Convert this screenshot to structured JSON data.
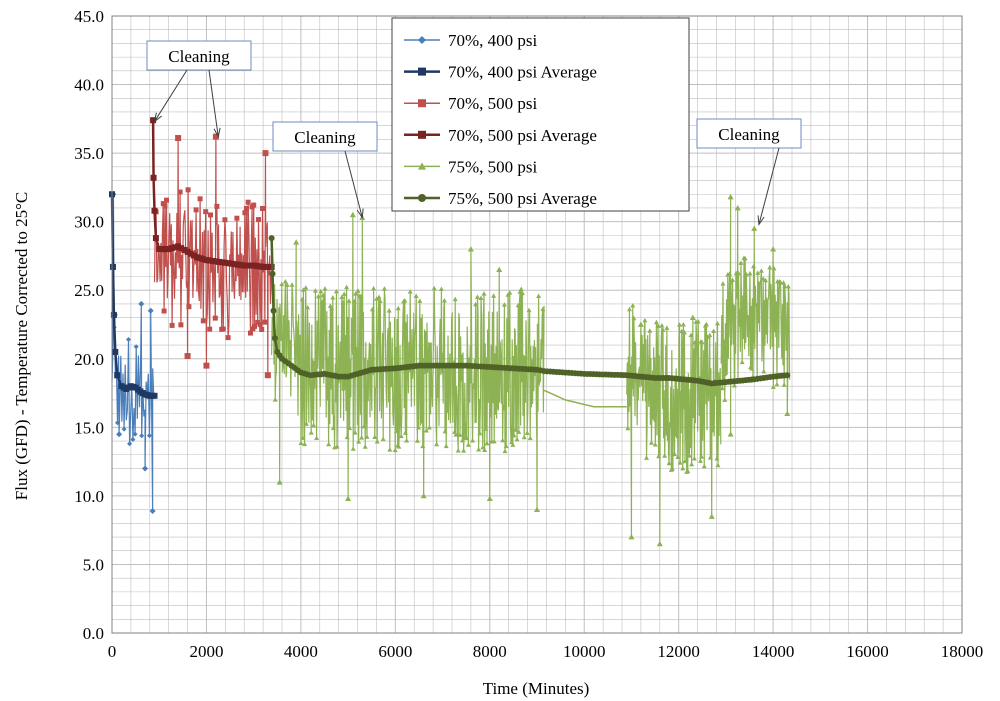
{
  "chart_data": {
    "type": "line",
    "xlabel": "Time (Minutes)",
    "ylabel": "Flux (GFD) - Temperature  Corrected to 25°C",
    "xlim": [
      0,
      18000
    ],
    "ylim": [
      0,
      45
    ],
    "x_ticks": [
      0,
      2000,
      4000,
      6000,
      8000,
      10000,
      12000,
      14000,
      16000,
      18000
    ],
    "y_ticks": [
      "0.0",
      "5.0",
      "10.0",
      "15.0",
      "20.0",
      "25.0",
      "30.0",
      "35.0",
      "40.0",
      "45.0"
    ],
    "grid": true,
    "minor_grid": true,
    "legend_position": "top-center",
    "colors": {
      "s1": "#4a7ebb",
      "s2": "#1f3864",
      "s3": "#c0504d",
      "s4": "#7b2222",
      "s5": "#8db254",
      "s6": "#4f6228",
      "grid": "#bfbfbf"
    },
    "series": [
      {
        "name": "70%, 400 psi",
        "color": "#4a7ebb",
        "marker": "diamond",
        "segments": [
          {
            "x_range": [
              0,
              900
            ],
            "baseline": [
              [
                0,
                19.5
              ],
              [
                150,
                18.5
              ],
              [
                400,
                17.8
              ],
              [
                900,
                17.5
              ]
            ],
            "amplitude": 4.2,
            "density": 1.1,
            "seed": 11,
            "extremes": [
              [
                30,
                32.0
              ],
              [
                60,
                23.2
              ],
              [
                150,
                14.5
              ],
              [
                620,
                24.0
              ],
              [
                700,
                12.0
              ],
              [
                860,
                8.9
              ],
              [
                820,
                23.5
              ]
            ]
          }
        ]
      },
      {
        "name": "70%, 400 psi Average",
        "color": "#1f3864",
        "marker": "square",
        "points": [
          [
            0,
            32.0
          ],
          [
            20,
            26.7
          ],
          [
            40,
            23.2
          ],
          [
            70,
            20.5
          ],
          [
            110,
            18.8
          ],
          [
            200,
            18.0
          ],
          [
            300,
            17.8
          ],
          [
            400,
            18.0
          ],
          [
            500,
            17.9
          ],
          [
            600,
            17.6
          ],
          [
            700,
            17.4
          ],
          [
            800,
            17.3
          ],
          [
            900,
            17.3
          ]
        ]
      },
      {
        "name": "70%, 500 psi",
        "color": "#c0504d",
        "marker": "square",
        "segments": [
          {
            "x_range": [
              900,
              3380
            ],
            "baseline": [
              [
                900,
                27.0
              ],
              [
                1500,
                27.5
              ],
              [
                2200,
                26.5
              ],
              [
                3380,
                26.5
              ]
            ],
            "amplitude": 5.0,
            "density": 0.8,
            "seed": 23,
            "extremes": [
              [
                1400,
                36.1
              ],
              [
                2200,
                36.2
              ],
              [
                3250,
                35.0
              ],
              [
                1600,
                20.2
              ],
              [
                2000,
                19.5
              ],
              [
                3300,
                18.8
              ]
            ]
          }
        ]
      },
      {
        "name": "70%, 500 psi Average",
        "color": "#7b2222",
        "marker": "square",
        "points": [
          [
            870,
            37.4
          ],
          [
            880,
            33.2
          ],
          [
            900,
            30.8
          ],
          [
            930,
            28.8
          ],
          [
            1000,
            28.0
          ],
          [
            1200,
            28.0
          ],
          [
            1400,
            28.2
          ],
          [
            1600,
            27.8
          ],
          [
            1800,
            27.4
          ],
          [
            2000,
            27.2
          ],
          [
            2200,
            27.1
          ],
          [
            2400,
            27.0
          ],
          [
            2600,
            26.9
          ],
          [
            2800,
            26.8
          ],
          [
            3000,
            26.8
          ],
          [
            3200,
            26.7
          ],
          [
            3380,
            26.7
          ]
        ]
      },
      {
        "name": "75%, 500 psi",
        "color": "#8db254",
        "marker": "triangle",
        "segments": [
          {
            "x_range": [
              3380,
              9150
            ],
            "baseline": [
              [
                3380,
                22.0
              ],
              [
                4000,
                19.5
              ],
              [
                6000,
                19.2
              ],
              [
                8000,
                19.3
              ],
              [
                9150,
                19.0
              ]
            ],
            "amplitude": 6.0,
            "density": 0.6,
            "seed": 37,
            "extremes": [
              [
                3900,
                28.5
              ],
              [
                5100,
                30.5
              ],
              [
                5300,
                30.3
              ],
              [
                7600,
                28.0
              ],
              [
                8200,
                26.5
              ],
              [
                3550,
                11.0
              ],
              [
                5000,
                9.8
              ],
              [
                6600,
                10.0
              ],
              [
                8000,
                9.8
              ],
              [
                9000,
                9.0
              ]
            ]
          },
          {
            "x_range": [
              9150,
              10900
            ],
            "line_only": true,
            "points": [
              [
                9150,
                17.7
              ],
              [
                9600,
                17.0
              ],
              [
                10200,
                16.5
              ],
              [
                10900,
                16.5
              ]
            ]
          },
          {
            "x_range": [
              10900,
              12900
            ],
            "baseline": [
              [
                10900,
                19.0
              ],
              [
                12000,
                17.0
              ],
              [
                12900,
                17.5
              ]
            ],
            "amplitude": 5.5,
            "density": 0.55,
            "seed": 53,
            "extremes": [
              [
                11200,
                22.5
              ],
              [
                12300,
                23.0
              ],
              [
                11600,
                6.5
              ],
              [
                11000,
                7.0
              ],
              [
                12700,
                8.5
              ]
            ]
          },
          {
            "x_range": [
              12900,
              14350
            ],
            "baseline": [
              [
                12900,
                21.0
              ],
              [
                13300,
                23.0
              ],
              [
                14350,
                22.0
              ]
            ],
            "amplitude": 4.5,
            "density": 0.6,
            "seed": 71,
            "extremes": [
              [
                13100,
                31.8
              ],
              [
                13250,
                31.0
              ],
              [
                13600,
                29.5
              ],
              [
                14000,
                28.0
              ],
              [
                13100,
                14.5
              ],
              [
                14300,
                16.0
              ]
            ]
          }
        ]
      },
      {
        "name": "75%, 500 psi Average",
        "color": "#4f6228",
        "marker": "circle",
        "points": [
          [
            3380,
            28.8
          ],
          [
            3400,
            26.2
          ],
          [
            3420,
            23.5
          ],
          [
            3450,
            21.5
          ],
          [
            3500,
            20.5
          ],
          [
            3600,
            20.0
          ],
          [
            3800,
            19.5
          ],
          [
            4000,
            19.0
          ],
          [
            4200,
            18.8
          ],
          [
            4500,
            18.9
          ],
          [
            4800,
            18.7
          ],
          [
            5000,
            18.7
          ],
          [
            5200,
            18.9
          ],
          [
            5500,
            19.2
          ],
          [
            6000,
            19.3
          ],
          [
            6500,
            19.5
          ],
          [
            7000,
            19.5
          ],
          [
            7500,
            19.5
          ],
          [
            8000,
            19.4
          ],
          [
            8500,
            19.3
          ],
          [
            9000,
            19.2
          ],
          [
            9150,
            19.1
          ],
          [
            10000,
            18.9
          ],
          [
            10900,
            18.8
          ],
          [
            11200,
            18.7
          ],
          [
            11500,
            18.6
          ],
          [
            11800,
            18.6
          ],
          [
            12100,
            18.5
          ],
          [
            12400,
            18.4
          ],
          [
            12700,
            18.2
          ],
          [
            13000,
            18.3
          ],
          [
            13300,
            18.4
          ],
          [
            13600,
            18.5
          ],
          [
            14000,
            18.7
          ],
          [
            14300,
            18.8
          ]
        ]
      }
    ],
    "annotations": [
      {
        "text": "Cleaning",
        "targets": [
          [
            900,
            37.3
          ],
          [
            2250,
            36.2
          ]
        ]
      },
      {
        "text": "Cleaning",
        "targets": [
          [
            5300,
            30.3
          ]
        ]
      },
      {
        "text": "Cleaning",
        "targets": [
          [
            13700,
            29.8
          ]
        ]
      }
    ]
  }
}
